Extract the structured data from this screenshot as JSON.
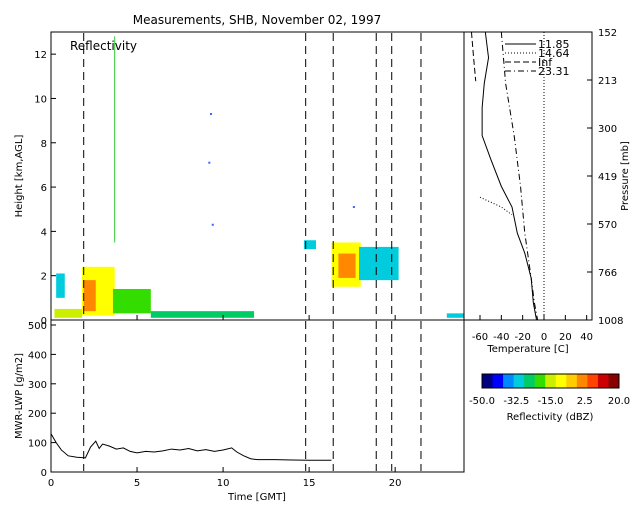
{
  "title": "Measurements, SHB, November 02, 1997",
  "chart_data": [
    {
      "id": "reflectivity-panel",
      "type": "heatmap",
      "title": "Reflectivity",
      "xlabel": "",
      "ylabel": "Height [km,AGL]",
      "xlim": [
        0,
        24
      ],
      "ylim": [
        0,
        13
      ],
      "xticks": [
        0,
        5,
        10,
        15,
        20
      ],
      "yticks": [
        0,
        2,
        4,
        6,
        8,
        10,
        12
      ],
      "vlines_dashed": [
        1.9,
        14.8,
        16.4,
        18.9,
        19.8,
        21.5
      ],
      "cloud_regions": [
        {
          "x": [
            0.2,
            1.8
          ],
          "y": [
            0.1,
            0.5
          ],
          "dbz": -15
        },
        {
          "x": [
            0.3,
            0.8
          ],
          "y": [
            1.0,
            2.1
          ],
          "dbz": -32
        },
        {
          "x": [
            1.8,
            3.7
          ],
          "y": [
            0.2,
            2.4
          ],
          "dbz": -10
        },
        {
          "x": [
            1.9,
            2.6
          ],
          "y": [
            0.4,
            1.8
          ],
          "dbz": 2
        },
        {
          "x": [
            3.6,
            5.8
          ],
          "y": [
            0.3,
            1.4
          ],
          "dbz": -22
        },
        {
          "x": [
            5.8,
            11.8
          ],
          "y": [
            0.1,
            0.4
          ],
          "dbz": -25
        },
        {
          "x": [
            14.7,
            15.4
          ],
          "y": [
            3.2,
            3.6
          ],
          "dbz": -30
        },
        {
          "x": [
            16.3,
            18.0
          ],
          "y": [
            1.5,
            3.5
          ],
          "dbz": -10
        },
        {
          "x": [
            16.7,
            17.7
          ],
          "y": [
            1.9,
            3.0
          ],
          "dbz": 0
        },
        {
          "x": [
            17.9,
            20.2
          ],
          "y": [
            1.8,
            3.3
          ],
          "dbz": -30
        },
        {
          "x": [
            23.0,
            24.0
          ],
          "y": [
            0.1,
            0.3
          ],
          "dbz": -35
        }
      ],
      "vertical_streak": {
        "x": 3.7,
        "y": [
          3.5,
          12.8
        ],
        "color": "#33cc33"
      },
      "isolated_points": [
        {
          "x": 9.3,
          "y": 9.3
        },
        {
          "x": 9.2,
          "y": 7.1
        },
        {
          "x": 9.4,
          "y": 4.3
        },
        {
          "x": 17.6,
          "y": 5.1
        }
      ]
    },
    {
      "id": "lwp-panel",
      "type": "line",
      "xlabel": "Time [GMT]",
      "ylabel": "MWR-LWP [g/m2]",
      "xlim": [
        0,
        24
      ],
      "ylim": [
        0,
        500
      ],
      "xticks": [
        0,
        5,
        10,
        15,
        20
      ],
      "yticks": [
        0,
        100,
        200,
        300,
        400,
        500
      ],
      "vlines_dashed": [
        1.9,
        14.8,
        16.4,
        18.9,
        19.8,
        21.5
      ],
      "series": [
        {
          "x": [
            0.0,
            0.3,
            0.6,
            1.0,
            1.5,
            2.0,
            2.3,
            2.6,
            2.8,
            3.0,
            3.4,
            3.8,
            4.2,
            4.6,
            5.0,
            5.5,
            6.0,
            6.5,
            7.0,
            7.5,
            8.0,
            8.5,
            9.0,
            9.5,
            10.0,
            10.5,
            10.8,
            11.2,
            11.6,
            12.0,
            13.0,
            14.0,
            15.0,
            16.0,
            16.3
          ],
          "y": [
            130,
            100,
            75,
            55,
            50,
            48,
            85,
            105,
            80,
            95,
            88,
            78,
            82,
            70,
            65,
            70,
            68,
            72,
            78,
            75,
            80,
            72,
            76,
            70,
            75,
            82,
            68,
            55,
            45,
            42,
            42,
            41,
            40,
            40,
            40
          ]
        }
      ]
    },
    {
      "id": "sounding-panel",
      "type": "line",
      "xlabel": "Temperature [C]",
      "ylabel": "Pressure [mb]",
      "xlim": [
        -75,
        45
      ],
      "xticks": [
        -60,
        -40,
        -20,
        0,
        20,
        40
      ],
      "right_ticks": [
        "152",
        "213",
        "300",
        "419",
        "570",
        "766",
        "1008"
      ],
      "series": [
        {
          "name": "11.85",
          "style": "solid",
          "temp": [
            -55,
            -52,
            -56,
            -58,
            -58,
            -50,
            -40,
            -30,
            -25,
            -18,
            -12,
            -10,
            -7
          ],
          "pres": [
            152,
            180,
            213,
            250,
            300,
            350,
            419,
            480,
            570,
            650,
            766,
            900,
            1008
          ]
        },
        {
          "name": "14.64",
          "style": "dotted",
          "temp": [
            0,
            0,
            0,
            0,
            0,
            0
          ],
          "pres": [
            152,
            300,
            500,
            700,
            900,
            1008
          ],
          "extra_temp": [
            -60,
            -40,
            -30
          ],
          "extra_pres": [
            450,
            480,
            505
          ]
        },
        {
          "name": "Inf",
          "style": "dashed",
          "temp": [
            -68,
            -66,
            -64
          ],
          "pres": [
            152,
            180,
            210
          ]
        },
        {
          "name": "23.31",
          "style": "dashdot",
          "temp": [
            -40,
            -36,
            -28,
            -22,
            -18,
            -12,
            -9,
            -6
          ],
          "pres": [
            152,
            213,
            300,
            419,
            570,
            766,
            900,
            1008
          ]
        }
      ]
    }
  ],
  "colorbar": {
    "label": "Reflectivity (dBZ)",
    "tick_labels": [
      "-50.0",
      "-32.5",
      "-15.0",
      "2.5",
      "20.0"
    ],
    "min": -50,
    "max": 20,
    "colors": [
      "#000080",
      "#0000ff",
      "#0088ff",
      "#00ccdd",
      "#00cc66",
      "#33dd00",
      "#ccee00",
      "#ffff00",
      "#ffcc00",
      "#ff8800",
      "#ff4400",
      "#cc0000",
      "#880000"
    ]
  }
}
